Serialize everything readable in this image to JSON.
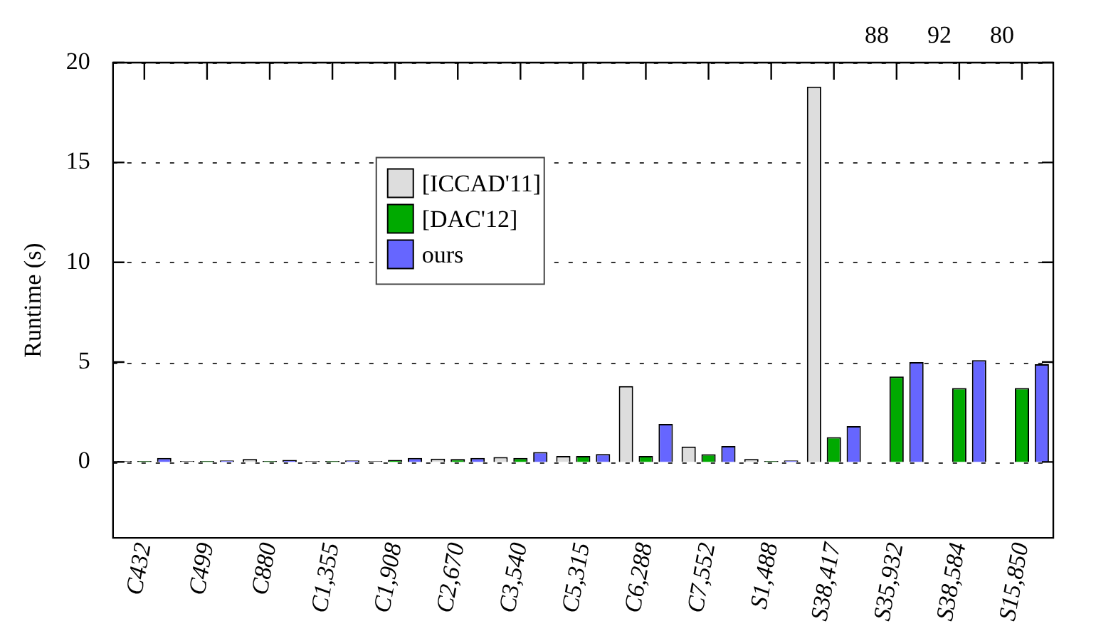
{
  "chart_data": {
    "type": "bar",
    "ylabel": "Runtime (s)",
    "categories": [
      "C432",
      "C499",
      "C880",
      "C1,355",
      "C1,908",
      "C2,670",
      "C3,540",
      "C5,315",
      "C6,288",
      "C7,552",
      "S1,488",
      "S38,417",
      "S35,932",
      "S38,584",
      "S15,850"
    ],
    "series": [
      {
        "name": "[ICCAD'11]",
        "color": "#dddddd",
        "values": [
          0.05,
          0.05,
          0.15,
          0.05,
          0.05,
          0.17,
          0.25,
          0.3,
          3.8,
          0.77,
          0.15,
          18.8,
          null,
          null,
          null
        ],
        "value_labels": [
          null,
          null,
          null,
          null,
          null,
          null,
          null,
          null,
          null,
          null,
          null,
          null,
          "88",
          "92",
          "80"
        ]
      },
      {
        "name": "[DAC'12]",
        "color": "#00aa00",
        "values": [
          0.05,
          0.05,
          0.05,
          0.05,
          0.1,
          0.15,
          0.2,
          0.3,
          0.3,
          0.39,
          0.05,
          1.24,
          4.28,
          3.7,
          3.7
        ]
      },
      {
        "name": "ours",
        "color": "#6666ff",
        "values": [
          0.2,
          0.08,
          0.1,
          0.08,
          0.2,
          0.2,
          0.5,
          0.4,
          1.9,
          0.8,
          0.08,
          1.8,
          5.0,
          5.1,
          4.9
        ]
      }
    ],
    "ylim": [
      -3.8,
      20
    ],
    "yticks": [
      0,
      5,
      10,
      15,
      20
    ],
    "grid": "y",
    "legend": "top left"
  }
}
